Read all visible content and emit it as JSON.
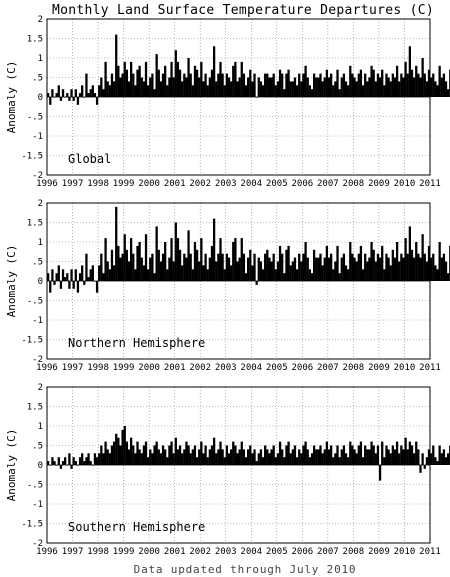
{
  "title": "Monthly Land Surface Temperature Departures (C)",
  "footer": "Data updated through July 2010",
  "colors": {
    "bars": "#000000",
    "grid": "#7f7f7f",
    "background": "#ffffff"
  },
  "chart_data": [
    {
      "type": "bar",
      "panel_label": "Global",
      "ylabel": "Anomaly (C)",
      "ylim": [
        -2,
        2
      ],
      "yticks": [
        "2",
        "1.5",
        "1",
        ".5",
        "0",
        "-.5",
        "-1",
        "-1.5",
        "-2"
      ],
      "xlim": [
        1996,
        2011
      ],
      "xticks": [
        "1996",
        "1997",
        "1998",
        "1999",
        "2000",
        "2001",
        "2002",
        "2003",
        "2004",
        "2005",
        "2006",
        "2007",
        "2008",
        "2009",
        "2010",
        "2011"
      ],
      "grid": true,
      "x_start": "1996-01",
      "values": [
        0.1,
        -0.2,
        0.2,
        0.0,
        0.1,
        0.3,
        -0.1,
        0.2,
        0.0,
        0.1,
        -0.1,
        0.2,
        -0.1,
        0.2,
        -0.2,
        0.1,
        0.3,
        0.0,
        0.6,
        0.1,
        0.2,
        0.3,
        0.1,
        -0.2,
        0.3,
        0.5,
        0.2,
        0.9,
        0.4,
        0.3,
        0.6,
        0.4,
        1.6,
        0.8,
        0.5,
        0.6,
        0.9,
        0.7,
        0.4,
        0.9,
        0.6,
        0.3,
        0.7,
        0.8,
        0.5,
        0.4,
        0.9,
        0.3,
        0.5,
        0.6,
        0.2,
        1.1,
        0.7,
        0.4,
        0.6,
        0.8,
        0.3,
        0.5,
        0.9,
        0.5,
        1.2,
        0.9,
        0.7,
        0.4,
        0.6,
        0.5,
        1.0,
        0.6,
        0.3,
        0.8,
        0.7,
        0.5,
        0.9,
        0.4,
        0.6,
        0.3,
        0.5,
        0.7,
        1.3,
        0.4,
        0.6,
        0.9,
        0.6,
        0.3,
        0.6,
        0.5,
        0.4,
        0.8,
        0.9,
        0.4,
        0.5,
        0.9,
        0.6,
        0.3,
        0.5,
        0.7,
        0.4,
        0.6,
        0.0,
        0.5,
        0.4,
        0.3,
        0.6,
        0.6,
        0.5,
        0.5,
        0.6,
        0.3,
        0.4,
        0.7,
        0.6,
        0.2,
        0.6,
        0.7,
        0.4,
        0.4,
        0.5,
        0.3,
        0.6,
        0.4,
        0.6,
        0.8,
        0.5,
        0.3,
        0.2,
        0.6,
        0.5,
        0.5,
        0.6,
        0.4,
        0.5,
        0.7,
        0.5,
        0.6,
        0.3,
        0.4,
        0.7,
        0.2,
        0.5,
        0.6,
        0.4,
        0.3,
        0.8,
        0.6,
        0.5,
        0.4,
        0.6,
        0.7,
        0.3,
        0.6,
        0.4,
        0.5,
        0.8,
        0.7,
        0.4,
        0.6,
        0.5,
        0.7,
        0.3,
        0.6,
        0.5,
        0.4,
        0.6,
        0.5,
        0.8,
        0.4,
        0.6,
        0.5,
        0.9,
        0.6,
        1.3,
        0.7,
        0.5,
        0.8,
        0.6,
        0.5,
        1.0,
        0.6,
        0.4,
        0.7,
        0.5,
        0.6,
        0.4,
        0.3,
        0.8,
        0.5,
        0.6,
        0.4,
        0.2,
        0.7,
        0.4,
        0.5,
        0.6,
        0.3,
        0.5,
        0.6,
        0.4,
        0.7,
        0.5,
        0.8,
        0.4,
        0.6,
        0.5,
        0.3,
        0.7,
        0.5,
        0.9,
        0.4,
        0.6,
        0.5,
        0.7,
        0.3,
        0.5,
        0.8,
        0.4,
        0.6,
        0.9,
        0.5,
        0.7,
        0.4,
        0.6,
        1.0,
        0.5,
        0.3,
        0.7,
        0.9,
        0.6,
        0.4,
        0.8,
        0.6,
        0.5,
        0.7
      ]
    },
    {
      "type": "bar",
      "panel_label": "Northern Hemisphere",
      "ylabel": "Anomaly (C)",
      "ylim": [
        -2,
        2
      ],
      "yticks": [
        "2",
        "1.5",
        "1",
        ".5",
        "0",
        "-.5",
        "-1",
        "-1.5",
        "-2"
      ],
      "xlim": [
        1996,
        2011
      ],
      "xticks": [
        "1996",
        "1997",
        "1998",
        "1999",
        "2000",
        "2001",
        "2002",
        "2003",
        "2004",
        "2005",
        "2006",
        "2007",
        "2008",
        "2009",
        "2010",
        "2011"
      ],
      "grid": true,
      "x_start": "1996-01",
      "values": [
        0.2,
        -0.3,
        0.3,
        -0.1,
        0.2,
        0.4,
        -0.2,
        0.3,
        0.1,
        0.2,
        -0.2,
        0.3,
        -0.2,
        0.3,
        -0.3,
        0.2,
        0.4,
        -0.1,
        0.7,
        0.1,
        0.3,
        0.4,
        0.0,
        -0.3,
        0.4,
        0.7,
        0.2,
        1.1,
        0.5,
        0.3,
        0.8,
        0.4,
        1.9,
        0.9,
        0.6,
        0.7,
        1.2,
        0.8,
        0.5,
        1.1,
        0.7,
        0.3,
        0.9,
        1.0,
        0.6,
        0.4,
        1.2,
        0.3,
        0.6,
        0.7,
        0.2,
        1.4,
        0.8,
        0.5,
        0.7,
        1.0,
        0.3,
        0.6,
        1.1,
        0.5,
        1.5,
        1.1,
        0.8,
        0.4,
        0.7,
        0.6,
        1.3,
        0.7,
        0.3,
        1.0,
        0.8,
        0.5,
        1.1,
        0.4,
        0.7,
        0.3,
        0.6,
        0.9,
        1.6,
        0.5,
        0.7,
        1.1,
        0.7,
        0.3,
        0.7,
        0.6,
        0.4,
        1.0,
        1.1,
        0.5,
        0.6,
        1.1,
        0.7,
        0.2,
        0.6,
        0.8,
        0.4,
        0.7,
        -0.1,
        0.6,
        0.5,
        0.3,
        0.7,
        0.8,
        0.6,
        0.5,
        0.7,
        0.3,
        0.5,
        0.9,
        0.7,
        0.2,
        0.8,
        0.9,
        0.4,
        0.5,
        0.6,
        0.3,
        0.7,
        0.5,
        0.7,
        1.0,
        0.6,
        0.3,
        0.2,
        0.8,
        0.6,
        0.6,
        0.7,
        0.4,
        0.6,
        0.9,
        0.6,
        0.7,
        0.3,
        0.5,
        0.9,
        0.2,
        0.6,
        0.7,
        0.4,
        0.3,
        1.0,
        0.7,
        0.6,
        0.5,
        0.7,
        0.9,
        0.3,
        0.7,
        0.5,
        0.6,
        1.0,
        0.8,
        0.5,
        0.7,
        0.6,
        0.9,
        0.3,
        0.7,
        0.6,
        0.4,
        0.8,
        0.6,
        1.0,
        0.5,
        0.7,
        0.6,
        1.1,
        0.7,
        1.4,
        0.8,
        0.6,
        1.0,
        0.7,
        0.6,
        1.2,
        0.7,
        0.5,
        0.9,
        0.6,
        0.7,
        0.4,
        0.3,
        1.0,
        0.6,
        0.7,
        0.5,
        0.2,
        0.9,
        0.5,
        0.6,
        0.7,
        0.3,
        0.6,
        0.8,
        0.5,
        0.9,
        0.6,
        1.0,
        0.5,
        0.7,
        0.6,
        0.3,
        0.9,
        0.6,
        1.1,
        0.5,
        0.7,
        0.6,
        0.9,
        0.3,
        0.6,
        1.0,
        0.4,
        0.7,
        1.1,
        0.6,
        0.9,
        0.5,
        0.7,
        1.2,
        0.6,
        0.3,
        0.9,
        1.1,
        0.7,
        0.4,
        1.0,
        0.7,
        0.6,
        0.8
      ]
    },
    {
      "type": "bar",
      "panel_label": "Southern Hemisphere",
      "ylabel": "Anomaly (C)",
      "ylim": [
        -2,
        2
      ],
      "yticks": [
        "2",
        "1.5",
        "1",
        ".5",
        "0",
        "-.5",
        "-1",
        "-1.5",
        "-2"
      ],
      "xlim": [
        1996,
        2011
      ],
      "xticks": [
        "1996",
        "1997",
        "1998",
        "1999",
        "2000",
        "2001",
        "2002",
        "2003",
        "2004",
        "2005",
        "2006",
        "2007",
        "2008",
        "2009",
        "2010",
        "2011"
      ],
      "grid": true,
      "x_start": "1996-01",
      "values": [
        0.1,
        0.0,
        0.2,
        0.1,
        0.0,
        0.2,
        -0.1,
        0.1,
        0.2,
        0.0,
        0.3,
        -0.1,
        0.2,
        0.1,
        0.0,
        0.2,
        0.3,
        0.1,
        0.2,
        0.3,
        0.1,
        0.0,
        0.3,
        0.2,
        0.3,
        0.5,
        0.3,
        0.6,
        0.4,
        0.3,
        0.5,
        0.6,
        0.8,
        0.7,
        0.5,
        0.9,
        1.0,
        0.6,
        0.4,
        0.7,
        0.5,
        0.3,
        0.6,
        0.4,
        0.3,
        0.5,
        0.6,
        0.2,
        0.4,
        0.3,
        0.5,
        0.6,
        0.4,
        0.3,
        0.5,
        0.4,
        0.2,
        0.5,
        0.6,
        0.3,
        0.7,
        0.4,
        0.5,
        0.3,
        0.4,
        0.6,
        0.5,
        0.3,
        0.4,
        0.5,
        0.2,
        0.4,
        0.6,
        0.3,
        0.5,
        0.2,
        0.4,
        0.5,
        0.7,
        0.3,
        0.4,
        0.6,
        0.4,
        0.2,
        0.5,
        0.3,
        0.4,
        0.6,
        0.5,
        0.3,
        0.4,
        0.6,
        0.4,
        0.2,
        0.4,
        0.5,
        0.3,
        0.4,
        0.1,
        0.3,
        0.4,
        0.2,
        0.5,
        0.4,
        0.3,
        0.4,
        0.5,
        0.2,
        0.3,
        0.6,
        0.4,
        0.2,
        0.5,
        0.6,
        0.3,
        0.4,
        0.5,
        0.2,
        0.4,
        0.3,
        0.5,
        0.6,
        0.4,
        0.2,
        0.3,
        0.5,
        0.4,
        0.4,
        0.5,
        0.3,
        0.4,
        0.6,
        0.4,
        0.5,
        0.2,
        0.3,
        0.5,
        0.2,
        0.4,
        0.5,
        0.3,
        0.2,
        0.6,
        0.5,
        0.4,
        0.3,
        0.5,
        0.6,
        0.2,
        0.5,
        0.4,
        0.4,
        0.6,
        0.5,
        0.3,
        0.5,
        -0.4,
        0.6,
        0.2,
        0.5,
        0.4,
        0.3,
        0.5,
        0.4,
        0.6,
        0.3,
        0.5,
        0.4,
        0.7,
        0.4,
        0.6,
        0.5,
        0.3,
        0.6,
        0.4,
        -0.2,
        0.3,
        -0.1,
        0.2,
        0.4,
        0.3,
        0.5,
        0.2,
        0.1,
        0.5,
        0.3,
        0.4,
        0.2,
        0.3,
        0.5,
        0.3,
        0.4,
        0.5,
        0.2,
        0.4,
        0.5,
        0.3,
        0.6,
        0.4,
        0.7,
        0.3,
        0.5,
        0.4,
        0.2,
        0.6,
        0.4,
        0.9,
        0.3,
        0.5,
        0.4,
        0.6,
        0.2,
        0.4,
        0.8,
        0.3,
        0.6,
        0.7,
        0.4,
        1.2,
        0.5,
        0.6,
        0.8,
        0.4,
        0.3,
        0.6,
        0.7,
        0.5,
        0.3,
        0.6,
        0.5,
        0.4,
        0.5
      ]
    }
  ]
}
